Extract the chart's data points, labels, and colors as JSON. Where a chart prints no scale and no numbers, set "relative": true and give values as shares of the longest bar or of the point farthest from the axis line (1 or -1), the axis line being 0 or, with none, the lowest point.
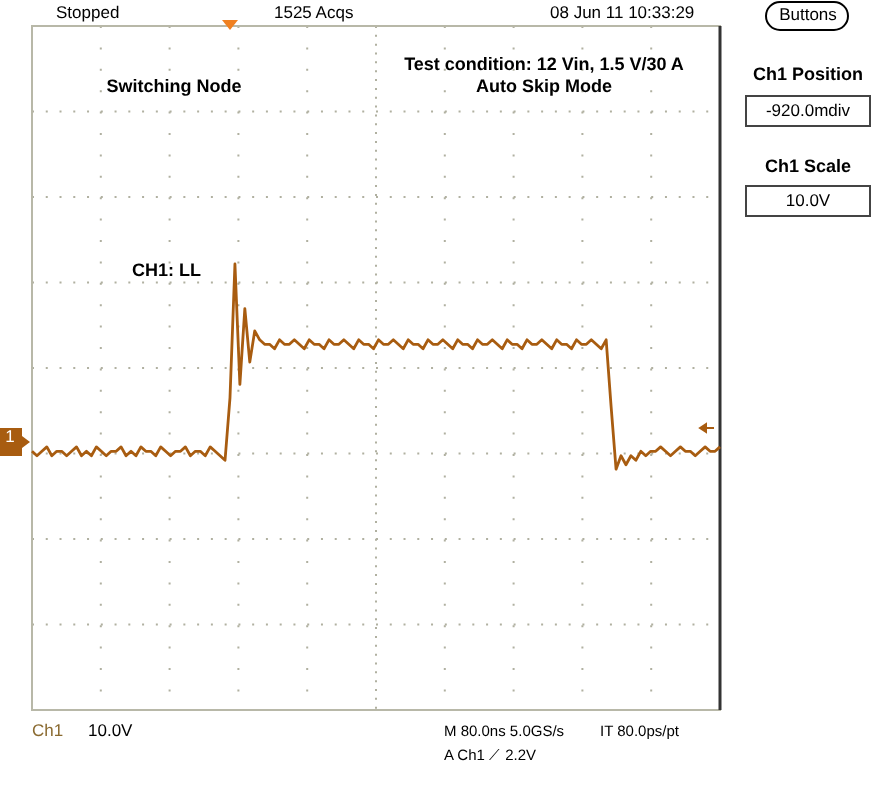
{
  "chart_data": {
    "type": "line",
    "relative": true,
    "grid": true,
    "annotations": [
      "Stopped",
      "1525 Acqs",
      "08 Jun 11 10:33:29",
      "Buttons",
      "Switching Node",
      "Test condition: 12 Vin, 1.5 V/30 A",
      "Auto Skip Mode",
      "CH1: LL",
      "Ch1 Position",
      "-920.0mdiv",
      "Ch1 Scale",
      "10.0V",
      "Ch1",
      "10.0V",
      "M 80.0ns 5.0GS/s",
      "IT 80.0ps/pt",
      "A Ch1 ⟋ 2.2V",
      "1"
    ],
    "categories": [
      null,
      null,
      null,
      null,
      null,
      null,
      null,
      null,
      null,
      null,
      null,
      null,
      null,
      null,
      null,
      null,
      null,
      null,
      null,
      null,
      null,
      null,
      null,
      null,
      null,
      null,
      null,
      null,
      null,
      null,
      null,
      null,
      null,
      null,
      null,
      null,
      null,
      null,
      null,
      null,
      null,
      null,
      null,
      null,
      null,
      null,
      null,
      null,
      null,
      null,
      null,
      null,
      null,
      null,
      null,
      null,
      null,
      null,
      null,
      null,
      null,
      null,
      null,
      null,
      null,
      null,
      null,
      null,
      null,
      null,
      null,
      null,
      null,
      null,
      null,
      null,
      null,
      null,
      null,
      null,
      null,
      null,
      null,
      null,
      null,
      null,
      null,
      null,
      null,
      null,
      null,
      null,
      null,
      null,
      null,
      null,
      null,
      null,
      null,
      null,
      null,
      null,
      null,
      null,
      null,
      null,
      null,
      null,
      null,
      null,
      null,
      null,
      null,
      null,
      null,
      null,
      null,
      null,
      null,
      null,
      null,
      null,
      null,
      null,
      null,
      null,
      null,
      null,
      null,
      null,
      null,
      null,
      null,
      null,
      null,
      null,
      null,
      null,
      null,
      null
    ],
    "series": [
      {
        "color": "#a85c10",
        "values": [
          0.58,
          0.57,
          0.58,
          0.59,
          0.57,
          0.58,
          0.58,
          0.57,
          0.58,
          0.59,
          0.57,
          0.58,
          0.57,
          0.59,
          0.58,
          0.57,
          0.58,
          0.58,
          0.59,
          0.57,
          0.58,
          0.57,
          0.59,
          0.58,
          0.58,
          0.57,
          0.59,
          0.58,
          0.57,
          0.58,
          0.58,
          0.59,
          0.57,
          0.58,
          0.58,
          0.57,
          0.59,
          0.58,
          0.57,
          0.56,
          0.7,
          1.0,
          0.73,
          0.9,
          0.78,
          0.85,
          0.83,
          0.82,
          0.82,
          0.81,
          0.83,
          0.82,
          0.82,
          0.83,
          0.82,
          0.81,
          0.83,
          0.82,
          0.82,
          0.81,
          0.83,
          0.82,
          0.82,
          0.83,
          0.82,
          0.81,
          0.83,
          0.82,
          0.82,
          0.81,
          0.83,
          0.82,
          0.82,
          0.83,
          0.82,
          0.81,
          0.83,
          0.82,
          0.82,
          0.81,
          0.83,
          0.82,
          0.82,
          0.83,
          0.82,
          0.81,
          0.83,
          0.82,
          0.82,
          0.81,
          0.83,
          0.82,
          0.82,
          0.83,
          0.82,
          0.81,
          0.83,
          0.82,
          0.82,
          0.81,
          0.83,
          0.82,
          0.82,
          0.83,
          0.82,
          0.81,
          0.83,
          0.82,
          0.82,
          0.81,
          0.83,
          0.82,
          0.82,
          0.83,
          0.82,
          0.81,
          0.83,
          0.68,
          0.54,
          0.57,
          0.55,
          0.57,
          0.56,
          0.58,
          0.57,
          0.58,
          0.58,
          0.59,
          0.58,
          0.57,
          0.58,
          0.59,
          0.58,
          0.58,
          0.57,
          0.58,
          0.59,
          0.58,
          0.58,
          0.59
        ]
      }
    ]
  }
}
